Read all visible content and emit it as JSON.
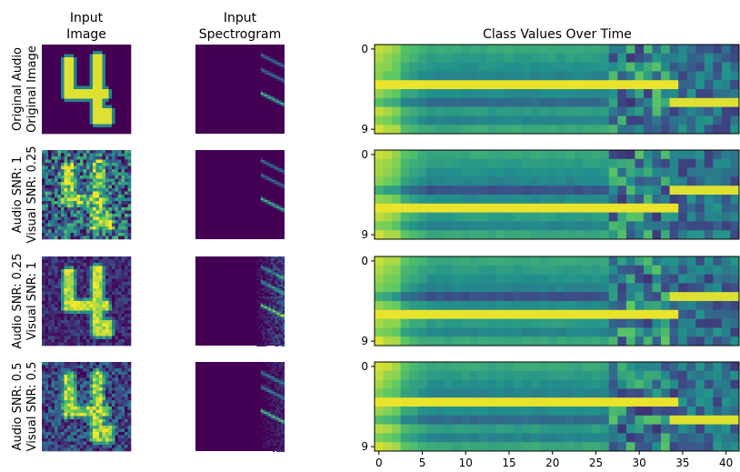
{
  "headers": {
    "image": [
      "Input",
      "Image"
    ],
    "spectrogram": [
      "Input",
      "Spectrogram"
    ],
    "class_values": "Class Values Over Time"
  },
  "rows": [
    {
      "label_line1": "Original Audio",
      "label_line2": "Original Image",
      "image_noise": 0.0,
      "spec_noise": 0.0
    },
    {
      "label_line1": "Audio SNR: 1",
      "label_line2": "Visual SNR: 0.25",
      "image_noise": 1.0,
      "spec_noise": 0.0
    },
    {
      "label_line1": "Audio SNR: 0.25",
      "label_line2": "Visual SNR: 1",
      "image_noise": 0.35,
      "spec_noise": 1.0
    },
    {
      "label_line1": "Audio SNR: 0.5",
      "label_line2": "Visual SNR: 0.5",
      "image_noise": 0.65,
      "spec_noise": 0.5
    }
  ],
  "colormap": [
    "#440154",
    "#3b528b",
    "#21918c",
    "#5ec962",
    "#fde725"
  ],
  "chart_data": {
    "type": "heatmap",
    "title": "Class Values Over Time",
    "x_ticks": [
      0,
      5,
      10,
      15,
      20,
      25,
      30,
      35,
      40
    ],
    "y_ticks": [
      "0",
      "9"
    ],
    "xlim": [
      0,
      41
    ],
    "classes": 10,
    "timesteps": 42,
    "panels": [
      {
        "dominant_class": 4,
        "secondary_class": 6,
        "switch_time": 27
      },
      {
        "dominant_class": 6,
        "secondary_class": 4,
        "switch_time": 27
      },
      {
        "dominant_class": 6,
        "secondary_class": 4,
        "switch_time": 27
      },
      {
        "dominant_class": 4,
        "secondary_class": 6,
        "switch_time": 27
      }
    ]
  }
}
